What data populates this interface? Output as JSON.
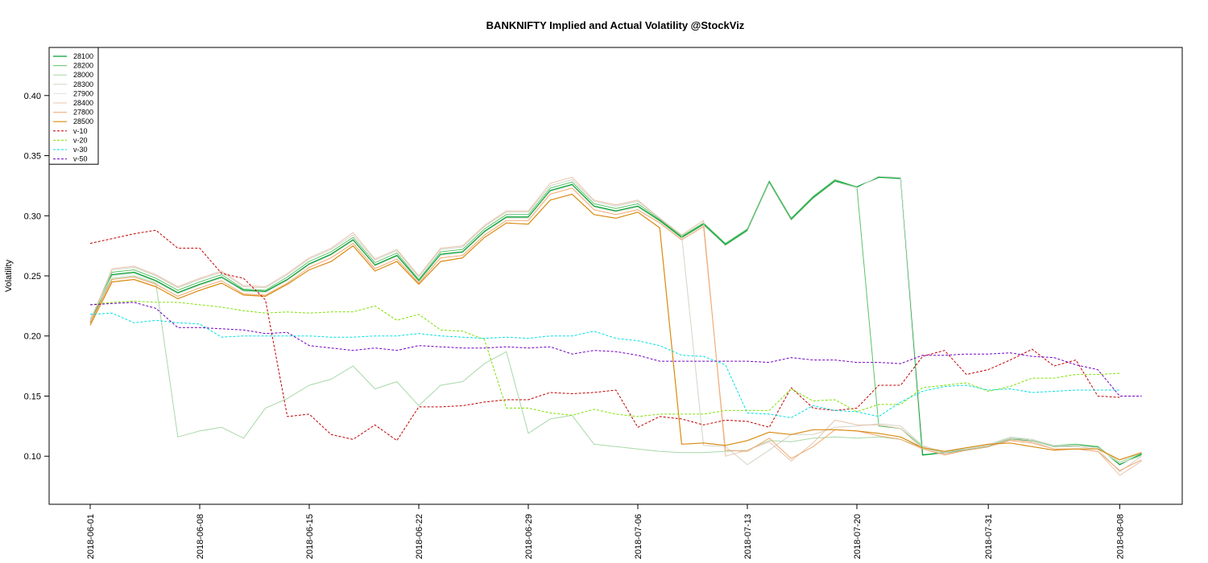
{
  "chart_data": {
    "type": "line",
    "title": "BANKNIFTY Implied and Actual Volatility @StockViz",
    "ylabel": "Volatility",
    "xlabel": "",
    "ylim": [
      0.06,
      0.44
    ],
    "yticks": [
      "0.10",
      "0.15",
      "0.20",
      "0.25",
      "0.30",
      "0.35",
      "0.40"
    ],
    "xticks": [
      "2018-06-01",
      "2018-06-08",
      "2018-06-15",
      "2018-06-22",
      "2018-06-29",
      "2018-07-06",
      "2018-07-13",
      "2018-07-20",
      "2018-07-31",
      "2018-08-08"
    ],
    "legend_position": "top-left",
    "grid": false,
    "series": [
      {
        "name": "28100",
        "color": "#00a030",
        "dash": "solid",
        "width": 1.3,
        "start": 0,
        "values": [
          0.211,
          0.251,
          0.253,
          0.246,
          0.236,
          0.243,
          0.249,
          0.238,
          0.237,
          0.247,
          0.26,
          0.268,
          0.28,
          0.259,
          0.267,
          0.246,
          0.268,
          0.27,
          0.287,
          0.299,
          0.299,
          0.321,
          0.326,
          0.308,
          0.304,
          0.308,
          0.296,
          0.282,
          0.293,
          0.276,
          0.288,
          0.328,
          0.297,
          0.315,
          0.329,
          0.324,
          0.332,
          0.331,
          0.101,
          0.103,
          0.105,
          0.108,
          0.114,
          0.113,
          0.108,
          0.109,
          0.108,
          0.093,
          0.102
        ]
      },
      {
        "name": "28200",
        "color": "#5cc46a",
        "dash": "solid",
        "width": 1,
        "start": 0,
        "values": [
          0.212,
          0.253,
          0.255,
          0.248,
          0.238,
          0.245,
          0.251,
          0.239,
          0.238,
          0.249,
          0.262,
          0.27,
          0.282,
          0.261,
          0.269,
          0.247,
          0.27,
          0.272,
          0.289,
          0.301,
          0.301,
          0.323,
          0.328,
          0.31,
          0.306,
          0.31,
          0.297,
          0.283,
          0.294,
          0.277,
          0.289,
          0.329,
          0.298,
          0.316,
          0.33,
          0.324,
          0.125,
          0.123,
          0.108,
          0.104,
          0.106,
          0.109,
          0.115,
          0.114,
          0.109,
          0.11,
          0.108,
          0.094,
          0.101
        ]
      },
      {
        "name": "28000",
        "color": "#a8d8a8",
        "dash": "solid",
        "width": 1,
        "start": 0,
        "values": [
          0.214,
          0.248,
          0.25,
          0.244,
          0.116,
          0.121,
          0.124,
          0.115,
          0.14,
          0.148,
          0.159,
          0.164,
          0.175,
          0.156,
          0.162,
          0.142,
          0.159,
          0.162,
          0.177,
          0.187,
          0.119,
          0.131,
          0.134,
          0.11,
          0.108,
          0.106,
          0.104,
          0.103,
          0.103,
          0.104,
          0.105,
          0.113,
          0.112,
          0.115,
          0.116,
          0.115,
          0.116,
          0.114,
          0.107,
          0.103,
          0.106,
          0.109,
          0.116,
          0.114,
          0.109,
          0.109,
          0.107,
          0.095,
          0.103
        ]
      },
      {
        "name": "28300",
        "color": "#d4d4c8",
        "dash": "solid",
        "width": 1,
        "start": 0,
        "values": [
          0.213,
          0.255,
          0.257,
          0.25,
          0.24,
          0.247,
          0.253,
          0.241,
          0.24,
          0.251,
          0.264,
          0.272,
          0.284,
          0.263,
          0.271,
          0.249,
          0.272,
          0.274,
          0.291,
          0.303,
          0.303,
          0.325,
          0.33,
          0.312,
          0.308,
          0.312,
          0.298,
          0.284,
          0.109,
          0.108,
          0.093,
          0.105,
          0.118,
          0.118,
          0.124,
          0.125,
          0.127,
          0.125,
          0.109,
          0.103,
          0.106,
          0.109,
          0.115,
          0.113,
          0.108,
          0.108,
          0.106,
          0.087,
          0.1
        ]
      },
      {
        "name": "27900",
        "color": "#e2e2dc",
        "dash": "solid",
        "width": 1,
        "start": 0,
        "values": [
          0.215,
          0.25,
          0.252,
          0.245,
          0.235,
          0.242,
          0.248,
          0.237,
          0.236,
          0.246,
          0.259,
          0.267,
          0.279,
          0.258,
          0.266,
          0.245,
          0.267,
          0.269,
          0.286,
          0.298,
          0.298,
          0.32,
          0.325,
          0.307,
          0.303,
          0.307,
          0.295,
          0.281,
          0.292,
          0.275,
          0.287,
          0.327,
          0.296,
          0.314,
          0.328,
          0.323,
          0.333,
          0.332,
          0.108,
          0.104,
          0.107,
          0.11,
          0.116,
          0.114,
          0.109,
          0.109,
          0.107,
          0.094,
          0.1
        ]
      },
      {
        "name": "28400",
        "color": "#e8c4ac",
        "dash": "solid",
        "width": 1,
        "start": 0,
        "values": [
          0.212,
          0.256,
          0.258,
          0.251,
          0.241,
          0.248,
          0.254,
          0.242,
          0.241,
          0.252,
          0.265,
          0.273,
          0.286,
          0.264,
          0.272,
          0.25,
          0.273,
          0.275,
          0.292,
          0.304,
          0.304,
          0.327,
          0.332,
          0.313,
          0.309,
          0.313,
          0.298,
          0.284,
          0.296,
          0.1,
          0.105,
          0.112,
          0.096,
          0.111,
          0.13,
          0.126,
          0.126,
          0.123,
          0.106,
          0.102,
          0.105,
          0.108,
          0.114,
          0.112,
          0.106,
          0.106,
          0.104,
          0.084,
          0.096
        ]
      },
      {
        "name": "27800",
        "color": "#f0a870",
        "dash": "solid",
        "width": 1,
        "start": 0,
        "values": [
          0.211,
          0.247,
          0.249,
          0.243,
          0.233,
          0.24,
          0.246,
          0.235,
          0.234,
          0.244,
          0.257,
          0.265,
          0.277,
          0.256,
          0.264,
          0.244,
          0.265,
          0.267,
          0.284,
          0.296,
          0.296,
          0.318,
          0.323,
          0.305,
          0.301,
          0.305,
          0.294,
          0.28,
          0.291,
          0.105,
          0.104,
          0.115,
          0.098,
          0.108,
          0.122,
          0.121,
          0.117,
          0.114,
          0.106,
          0.101,
          0.105,
          0.108,
          0.113,
          0.111,
          0.106,
          0.106,
          0.104,
          0.088,
          0.097
        ]
      },
      {
        "name": "28500",
        "color": "#d88a10",
        "dash": "solid",
        "width": 1.2,
        "start": 0,
        "values": [
          0.209,
          0.245,
          0.247,
          0.241,
          0.231,
          0.238,
          0.244,
          0.234,
          0.233,
          0.243,
          0.255,
          0.262,
          0.275,
          0.254,
          0.262,
          0.243,
          0.262,
          0.265,
          0.282,
          0.294,
          0.293,
          0.313,
          0.318,
          0.301,
          0.298,
          0.303,
          0.29,
          0.11,
          0.111,
          0.109,
          0.113,
          0.12,
          0.118,
          0.122,
          0.122,
          0.121,
          0.119,
          0.116,
          0.107,
          0.104,
          0.107,
          0.11,
          0.111,
          0.108,
          0.105,
          0.106,
          0.106,
          0.097,
          0.103
        ]
      },
      {
        "name": "v-10",
        "color": "#c00000",
        "dash": "dashed",
        "width": 1,
        "start": 0,
        "values": [
          0.277,
          0.281,
          0.285,
          0.288,
          0.273,
          0.273,
          0.252,
          0.248,
          0.23,
          0.133,
          0.135,
          0.118,
          0.114,
          0.126,
          0.113,
          0.141,
          0.141,
          0.142,
          0.145,
          0.147,
          0.147,
          0.153,
          0.152,
          0.153,
          0.155,
          0.124,
          0.133,
          0.131,
          0.126,
          0.13,
          0.129,
          0.124,
          0.157,
          0.14,
          0.138,
          0.14,
          0.159,
          0.159,
          0.183,
          0.188,
          0.168,
          0.172,
          0.18,
          0.189,
          0.175,
          0.18,
          0.15,
          0.149
        ]
      },
      {
        "name": "v-20",
        "color": "#7ee000",
        "dash": "dashed",
        "width": 1,
        "start": 0,
        "values": [
          0.226,
          0.228,
          0.229,
          0.228,
          0.228,
          0.226,
          0.224,
          0.221,
          0.219,
          0.22,
          0.219,
          0.22,
          0.22,
          0.225,
          0.213,
          0.218,
          0.205,
          0.204,
          0.197,
          0.14,
          0.14,
          0.136,
          0.134,
          0.139,
          0.135,
          0.133,
          0.135,
          0.135,
          0.135,
          0.138,
          0.138,
          0.138,
          0.156,
          0.146,
          0.147,
          0.137,
          0.143,
          0.143,
          0.157,
          0.159,
          0.161,
          0.154,
          0.158,
          0.165,
          0.165,
          0.168,
          0.168,
          0.169
        ]
      },
      {
        "name": "v-30",
        "color": "#00e0e0",
        "dash": "dashed",
        "width": 1,
        "start": 0,
        "values": [
          0.218,
          0.219,
          0.211,
          0.213,
          0.211,
          0.21,
          0.199,
          0.2,
          0.2,
          0.2,
          0.2,
          0.199,
          0.199,
          0.2,
          0.2,
          0.202,
          0.2,
          0.199,
          0.198,
          0.199,
          0.198,
          0.2,
          0.2,
          0.204,
          0.198,
          0.196,
          0.192,
          0.184,
          0.183,
          0.176,
          0.136,
          0.135,
          0.132,
          0.142,
          0.138,
          0.137,
          0.133,
          0.145,
          0.154,
          0.158,
          0.159,
          0.155,
          0.156,
          0.153,
          0.154,
          0.155,
          0.155,
          0.155
        ]
      },
      {
        "name": "v-50",
        "color": "#7000c0",
        "dash": "dashed",
        "width": 1,
        "start": 0,
        "values": [
          0.226,
          0.227,
          0.228,
          0.223,
          0.207,
          0.207,
          0.206,
          0.205,
          0.202,
          0.203,
          0.192,
          0.19,
          0.188,
          0.19,
          0.188,
          0.192,
          0.191,
          0.19,
          0.19,
          0.191,
          0.19,
          0.191,
          0.185,
          0.188,
          0.187,
          0.184,
          0.179,
          0.179,
          0.179,
          0.179,
          0.179,
          0.178,
          0.182,
          0.18,
          0.18,
          0.178,
          0.178,
          0.177,
          0.184,
          0.184,
          0.185,
          0.185,
          0.186,
          0.183,
          0.182,
          0.176,
          0.172,
          0.15,
          0.15
        ]
      }
    ]
  }
}
